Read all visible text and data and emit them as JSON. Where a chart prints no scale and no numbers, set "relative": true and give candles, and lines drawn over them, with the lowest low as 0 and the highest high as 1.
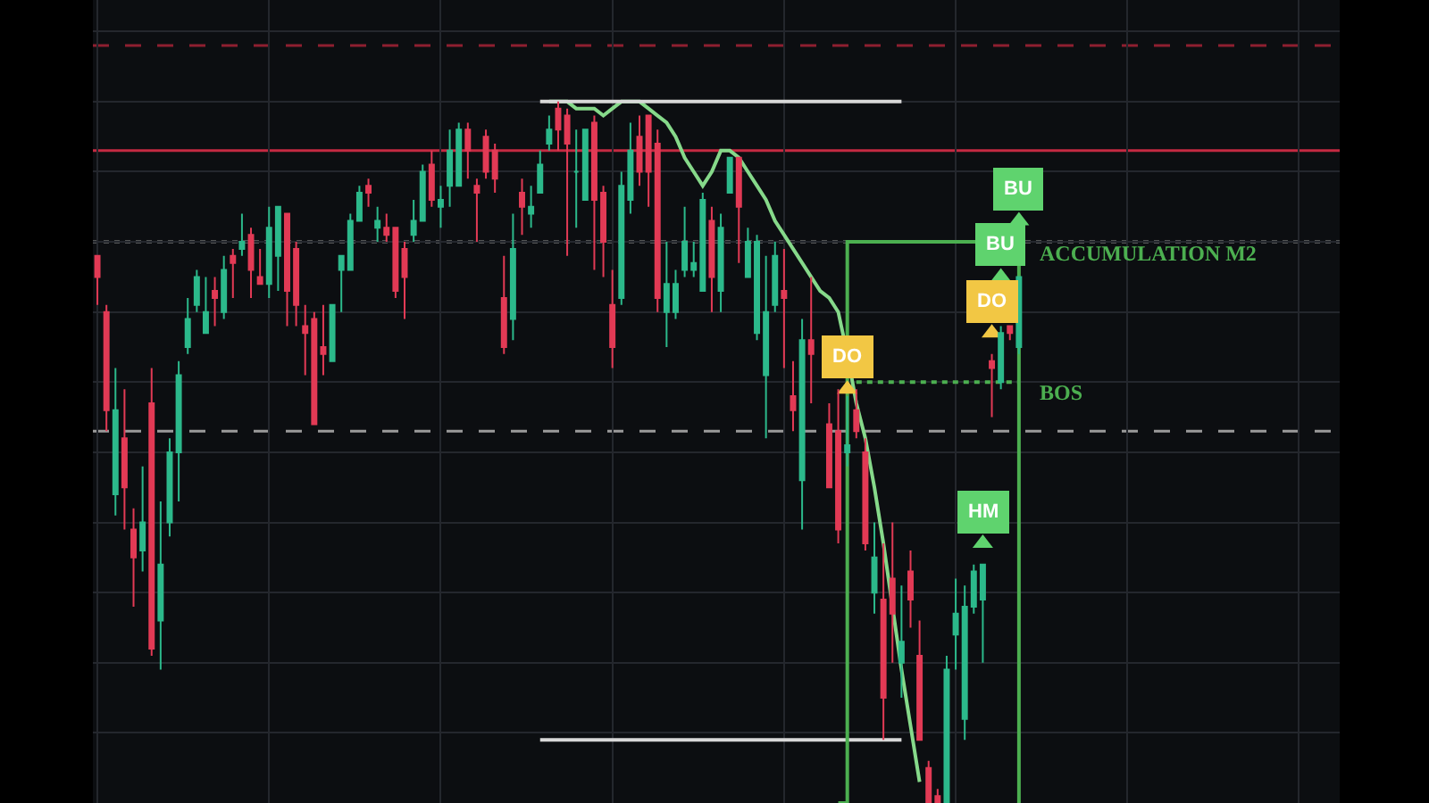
{
  "chart_data": {
    "type": "candlestick",
    "relative": true,
    "grid": true,
    "tick_labels": false,
    "categories": [
      null,
      null,
      null,
      null,
      null,
      null,
      null,
      null,
      null,
      null,
      null,
      null,
      null,
      null,
      null,
      null,
      null,
      null,
      null,
      null,
      null,
      null,
      null,
      null,
      null,
      null,
      null,
      null,
      null,
      null,
      null,
      null,
      null,
      null,
      null,
      null,
      null,
      null,
      null,
      null,
      null,
      null,
      null,
      null,
      null,
      null,
      null,
      null,
      null,
      null,
      null,
      null,
      null,
      null,
      null,
      null,
      null,
      null,
      null,
      null,
      null,
      null,
      null,
      null,
      null,
      null,
      null,
      null,
      null,
      null,
      null,
      null,
      null,
      null,
      null,
      null,
      null,
      null,
      null,
      null,
      null,
      null,
      null,
      null,
      null,
      null,
      null,
      null,
      null,
      null,
      null,
      null,
      null,
      null,
      null,
      null,
      null,
      null,
      null,
      null,
      null,
      null,
      null,
      null,
      null,
      null,
      null,
      null,
      null,
      null,
      null,
      null,
      null,
      null,
      null,
      null,
      null,
      null,
      null,
      null,
      null,
      null,
      null,
      null,
      null,
      null,
      null,
      null,
      null,
      null,
      null,
      null,
      null,
      null,
      null,
      null,
      null,
      null
    ],
    "ohlc": [
      [
        0.78,
        0.78,
        0.71,
        0.75
      ],
      [
        0.7,
        0.71,
        0.53,
        0.56
      ],
      [
        0.44,
        0.62,
        0.41,
        0.56
      ],
      [
        0.52,
        0.59,
        0.39,
        0.45
      ],
      [
        0.39,
        0.42,
        0.28,
        0.35
      ],
      [
        0.36,
        0.48,
        0.33,
        0.4
      ],
      [
        0.57,
        0.62,
        0.21,
        0.22
      ],
      [
        0.26,
        0.43,
        0.19,
        0.34
      ],
      [
        0.4,
        0.52,
        0.38,
        0.5
      ],
      [
        0.5,
        0.63,
        0.43,
        0.61
      ],
      [
        0.65,
        0.72,
        0.64,
        0.69
      ],
      [
        0.71,
        0.76,
        0.7,
        0.75
      ],
      [
        0.67,
        0.75,
        0.67,
        0.7
      ],
      [
        0.73,
        0.75,
        0.68,
        0.72
      ],
      [
        0.7,
        0.78,
        0.69,
        0.76
      ],
      [
        0.78,
        0.79,
        0.72,
        0.77
      ],
      [
        0.79,
        0.84,
        0.78,
        0.8
      ],
      [
        0.81,
        0.82,
        0.72,
        0.76
      ],
      [
        0.75,
        0.79,
        0.74,
        0.74
      ],
      [
        0.74,
        0.85,
        0.72,
        0.82
      ],
      [
        0.78,
        0.85,
        0.73,
        0.85
      ],
      [
        0.84,
        0.84,
        0.68,
        0.73
      ],
      [
        0.79,
        0.8,
        0.68,
        0.71
      ],
      [
        0.68,
        0.71,
        0.61,
        0.67
      ],
      [
        0.69,
        0.7,
        0.54,
        0.54
      ],
      [
        0.65,
        0.71,
        0.61,
        0.64
      ],
      [
        0.63,
        0.71,
        0.63,
        0.71
      ],
      [
        0.76,
        0.78,
        0.7,
        0.78
      ],
      [
        0.76,
        0.84,
        0.76,
        0.83
      ],
      [
        0.83,
        0.88,
        0.83,
        0.87
      ],
      [
        0.88,
        0.89,
        0.85,
        0.87
      ],
      [
        0.82,
        0.85,
        0.8,
        0.83
      ],
      [
        0.82,
        0.84,
        0.8,
        0.81
      ],
      [
        0.82,
        0.82,
        0.72,
        0.73
      ],
      [
        0.79,
        0.8,
        0.69,
        0.75
      ],
      [
        0.81,
        0.86,
        0.8,
        0.83
      ],
      [
        0.83,
        0.91,
        0.83,
        0.9
      ],
      [
        0.91,
        0.93,
        0.85,
        0.86
      ],
      [
        0.85,
        0.88,
        0.82,
        0.86
      ],
      [
        0.88,
        0.96,
        0.85,
        0.93
      ],
      [
        0.88,
        0.97,
        0.88,
        0.96
      ],
      [
        0.96,
        0.97,
        0.89,
        0.93
      ],
      [
        0.88,
        0.89,
        0.8,
        0.87
      ],
      [
        0.95,
        0.96,
        0.89,
        0.9
      ],
      [
        0.93,
        0.94,
        0.87,
        0.89
      ],
      [
        0.72,
        0.78,
        0.64,
        0.65
      ],
      [
        0.69,
        0.84,
        0.66,
        0.79
      ],
      [
        0.87,
        0.89,
        0.81,
        0.85
      ],
      [
        0.84,
        0.88,
        0.82,
        0.85
      ],
      [
        0.87,
        0.93,
        0.87,
        0.91
      ],
      [
        0.94,
        0.98,
        0.93,
        0.96
      ],
      [
        0.99,
        1.0,
        0.93,
        0.96
      ],
      [
        0.98,
        0.99,
        0.78,
        0.94
      ],
      [
        0.9,
        0.96,
        0.82,
        0.9
      ],
      [
        0.86,
        0.96,
        0.86,
        0.96
      ],
      [
        0.97,
        0.98,
        0.76,
        0.86
      ],
      [
        0.87,
        0.88,
        0.75,
        0.8
      ],
      [
        0.71,
        0.76,
        0.62,
        0.65
      ],
      [
        0.72,
        0.9,
        0.71,
        0.88
      ],
      [
        0.86,
        0.97,
        0.84,
        0.93
      ],
      [
        0.95,
        0.98,
        0.88,
        0.9
      ],
      [
        0.98,
        0.98,
        0.85,
        0.9
      ],
      [
        0.94,
        0.96,
        0.7,
        0.72
      ],
      [
        0.7,
        0.8,
        0.65,
        0.74
      ],
      [
        0.7,
        0.76,
        0.69,
        0.74
      ],
      [
        0.76,
        0.85,
        0.75,
        0.8
      ],
      [
        0.76,
        0.8,
        0.75,
        0.77
      ],
      [
        0.73,
        0.87,
        0.73,
        0.86
      ],
      [
        0.83,
        0.85,
        0.7,
        0.75
      ],
      [
        0.73,
        0.84,
        0.7,
        0.82
      ],
      [
        0.87,
        0.92,
        0.87,
        0.92
      ],
      [
        0.92,
        0.92,
        0.77,
        0.85
      ],
      [
        0.75,
        0.82,
        0.75,
        0.8
      ],
      [
        0.67,
        0.81,
        0.66,
        0.8
      ],
      [
        0.61,
        0.78,
        0.52,
        0.7
      ],
      [
        0.71,
        0.8,
        0.7,
        0.78
      ],
      [
        0.73,
        0.79,
        0.62,
        0.72
      ],
      [
        0.58,
        0.63,
        0.53,
        0.56
      ],
      [
        0.46,
        0.69,
        0.39,
        0.66
      ],
      [
        0.66,
        0.75,
        0.57,
        0.64
      ],
      null,
      [
        0.54,
        0.57,
        0.45,
        0.45
      ],
      [
        0.53,
        0.59,
        0.37,
        0.39
      ],
      [
        0.5,
        0.58,
        0.48,
        0.51
      ],
      [
        0.56,
        0.59,
        0.52,
        0.53
      ],
      [
        0.5,
        0.52,
        0.36,
        0.37
      ],
      [
        0.3,
        0.4,
        0.27,
        0.35
      ],
      [
        0.29,
        0.37,
        0.09,
        0.15
      ],
      [
        0.32,
        0.4,
        0.2,
        0.27
      ],
      [
        0.2,
        0.31,
        0.15,
        0.23
      ],
      [
        0.33,
        0.36,
        0.25,
        0.29
      ],
      [
        0.21,
        0.26,
        0.09,
        0.09
      ],
      [
        0.05,
        0.06,
        0,
        0
      ],
      [
        0.01,
        0.02,
        0,
        0
      ],
      [
        0,
        0.21,
        0,
        0.19
      ],
      [
        0.24,
        0.32,
        0.19,
        0.27
      ],
      [
        0.12,
        0.31,
        0.09,
        0.28
      ],
      [
        0.28,
        0.34,
        0.27,
        0.33
      ],
      [
        0.29,
        0.34,
        0.2,
        0.34
      ],
      [
        0.63,
        0.64,
        0.55,
        0.62
      ],
      [
        0.6,
        0.68,
        0.59,
        0.67
      ],
      [
        0.68,
        0.68,
        0.66,
        0.67
      ],
      [
        0.65,
        0.75,
        0.64,
        0.75
      ],
      null,
      null,
      null,
      null,
      null,
      null,
      null,
      null,
      null,
      null,
      null,
      null,
      null,
      null,
      null,
      null,
      null,
      null,
      null,
      null,
      null,
      null,
      null,
      null,
      null,
      null,
      null,
      null,
      null,
      null,
      null,
      null,
      null,
      null,
      null
    ],
    "colors": [
      "#e23a55",
      "#e23a55",
      "#2cb98b",
      "#e23a55",
      "#e23a55",
      "#2cb98b",
      "#e23a55",
      "#2cb98b",
      "#2cb98b",
      "#2cb98b",
      "#2cb98b",
      "#2cb98b",
      "#2cb98b",
      "#e23a55",
      "#2cb98b",
      "#e23a55",
      "#2cb98b",
      "#e23a55",
      "#e23a55",
      "#2cb98b",
      "#2cb98b",
      "#e23a55",
      "#e23a55",
      "#e23a55",
      "#e23a55",
      "#e23a55",
      "#2cb98b",
      "#2cb98b",
      "#2cb98b",
      "#2cb98b",
      "#e23a55",
      "#2cb98b",
      "#e23a55",
      "#e23a55",
      "#e23a55",
      "#2cb98b",
      "#2cb98b",
      "#e23a55",
      "#2cb98b",
      "#2cb98b",
      "#2cb98b",
      "#e23a55",
      "#e23a55",
      "#e23a55",
      "#e23a55",
      "#e23a55",
      "#2cb98b",
      "#e23a55",
      "#2cb98b",
      "#2cb98b",
      "#2cb98b",
      "#e23a55",
      "#e23a55",
      "#2cb98b",
      "#2cb98b",
      "#e23a55",
      "#e23a55",
      "#e23a55",
      "#2cb98b",
      "#2cb98b",
      "#e23a55",
      "#e23a55",
      "#e23a55",
      "#2cb98b",
      "#2cb98b",
      "#2cb98b",
      "#2cb98b",
      "#2cb98b",
      "#e23a55",
      "#2cb98b",
      "#2cb98b",
      "#e23a55",
      "#2cb98b",
      "#2cb98b",
      "#2cb98b",
      "#2cb98b",
      "#e23a55",
      "#e23a55",
      "#2cb98b",
      "#e23a55",
      null,
      "#e23a55",
      "#e23a55",
      "#2cb98b",
      "#e23a55",
      "#e23a55",
      "#2cb98b",
      "#e23a55",
      "#e23a55",
      "#2cb98b",
      "#e23a55",
      "#e23a55",
      "#e23a55",
      "#e23a55",
      "#2cb98b",
      "#2cb98b",
      "#2cb98b",
      "#2cb98b",
      "#2cb98b",
      "#e23a55",
      "#2cb98b",
      "#e23a55",
      "#2cb98b",
      null,
      null,
      null,
      null,
      null,
      null,
      null,
      null,
      null,
      null,
      null,
      null,
      null,
      null,
      null,
      null,
      null,
      null,
      null,
      null,
      null,
      null,
      null,
      null,
      null,
      null,
      null,
      null,
      null,
      null,
      null,
      null,
      null,
      null,
      null
    ],
    "series": [
      {
        "type": "line",
        "color": "#86d98a",
        "values": [
          null,
          null,
          null,
          null,
          null,
          null,
          null,
          null,
          null,
          null,
          null,
          null,
          null,
          null,
          null,
          null,
          null,
          null,
          null,
          null,
          null,
          null,
          null,
          null,
          null,
          null,
          null,
          null,
          null,
          null,
          null,
          null,
          null,
          null,
          null,
          null,
          null,
          null,
          null,
          null,
          null,
          null,
          null,
          null,
          null,
          null,
          null,
          null,
          null,
          null,
          1.0,
          1.0,
          1.0,
          0.99,
          0.99,
          0.99,
          0.98,
          0.99,
          1.0,
          1.0,
          1.0,
          0.99,
          0.98,
          0.97,
          0.95,
          0.92,
          0.9,
          0.88,
          0.9,
          0.93,
          0.93,
          0.92,
          0.9,
          0.88,
          0.86,
          0.83,
          0.81,
          0.79,
          0.77,
          0.75,
          0.73,
          0.72,
          0.7,
          0.64,
          0.57,
          0.52,
          0.45,
          0.37,
          null,
          0.19,
          0.11,
          0.03,
          null,
          null,
          null,
          null,
          null,
          null,
          null,
          null,
          null,
          null,
          null,
          null,
          null,
          null,
          null,
          null,
          null,
          null,
          null,
          null,
          null,
          null,
          null,
          null,
          null,
          null,
          null,
          null,
          null,
          null,
          null,
          null,
          null,
          null,
          null,
          null,
          null,
          null,
          null,
          null,
          null,
          null,
          null,
          null,
          null,
          null
        ]
      },
      {
        "type": "line",
        "color": "#d8d8d8",
        "values": [
          null,
          null,
          null,
          null,
          null,
          null,
          null,
          null,
          null,
          null,
          null,
          null,
          null,
          null,
          null,
          null,
          null,
          null,
          null,
          null,
          null,
          null,
          null,
          null,
          null,
          null,
          null,
          null,
          null,
          null,
          null,
          null,
          null,
          null,
          null,
          null,
          null,
          null,
          null,
          null,
          null,
          null,
          null,
          null,
          null,
          null,
          null,
          null,
          null,
          1.0,
          1.0,
          1.0,
          1.0,
          1.0,
          1.0,
          1.0,
          1.0,
          1.0,
          1.0,
          1.0,
          1.0,
          1.0,
          1.0,
          1.0,
          1.0,
          1.0,
          1.0,
          1.0,
          1.0,
          1.0,
          1.0,
          1.0,
          1.0,
          1.0,
          1.0,
          1.0,
          1.0,
          1.0,
          1.0,
          1.0,
          1.0,
          1.0,
          1.0,
          1.0,
          1.0,
          1.0,
          1.0,
          1.0,
          1.0,
          1.0,
          null,
          null,
          null,
          null,
          null,
          null,
          null,
          null,
          null,
          null,
          null,
          null,
          null,
          null,
          null,
          null,
          null,
          null,
          null,
          null,
          null,
          null,
          null,
          null,
          null,
          null,
          null,
          null,
          null,
          null,
          null,
          null,
          null,
          null,
          null,
          null,
          null,
          null,
          null,
          null,
          null,
          null,
          null,
          null,
          null,
          null,
          null,
          null
        ]
      },
      {
        "type": "line",
        "color": "#d8d8d8",
        "values": [
          null,
          null,
          null,
          null,
          null,
          null,
          null,
          null,
          null,
          null,
          null,
          null,
          null,
          null,
          null,
          null,
          null,
          null,
          null,
          null,
          null,
          null,
          null,
          null,
          null,
          null,
          null,
          null,
          null,
          null,
          null,
          null,
          null,
          null,
          null,
          null,
          null,
          null,
          null,
          null,
          null,
          null,
          null,
          null,
          null,
          null,
          null,
          null,
          null,
          0.09,
          0.09,
          0.09,
          0.09,
          0.09,
          0.09,
          0.09,
          0.09,
          0.09,
          0.09,
          0.09,
          0.09,
          0.09,
          0.09,
          0.09,
          0.09,
          0.09,
          0.09,
          0.09,
          0.09,
          0.09,
          0.09,
          0.09,
          0.09,
          0.09,
          0.09,
          0.09,
          0.09,
          0.09,
          0.09,
          0.09,
          0.09,
          0.09,
          0.09,
          0.09,
          0.09,
          0.09,
          0.09,
          0.09,
          0.09,
          0.09,
          null,
          null,
          null,
          null,
          null,
          null,
          null,
          null,
          null,
          null,
          null,
          null,
          null,
          null,
          null,
          null,
          null,
          null,
          null,
          null,
          null,
          null,
          null,
          null,
          null,
          null,
          null,
          null,
          null,
          null,
          null,
          null,
          null,
          null,
          null,
          null,
          null,
          null,
          null,
          null,
          null,
          null,
          null,
          null,
          null,
          null,
          null,
          null
        ]
      },
      {
        "type": "line",
        "name": "BOS",
        "color": "#4caf50",
        "line_style": "dotted",
        "values": [
          null,
          null,
          null,
          null,
          null,
          null,
          null,
          null,
          null,
          null,
          null,
          null,
          null,
          null,
          null,
          null,
          null,
          null,
          null,
          null,
          null,
          null,
          null,
          null,
          null,
          null,
          null,
          null,
          null,
          null,
          null,
          null,
          null,
          null,
          null,
          null,
          null,
          null,
          null,
          null,
          null,
          null,
          null,
          null,
          null,
          null,
          null,
          null,
          null,
          null,
          null,
          null,
          null,
          null,
          null,
          null,
          null,
          null,
          null,
          null,
          null,
          null,
          null,
          null,
          null,
          null,
          null,
          null,
          null,
          null,
          null,
          null,
          null,
          null,
          null,
          null,
          null,
          null,
          null,
          null,
          null,
          null,
          null,
          null,
          0.6,
          0.6,
          0.6,
          0.6,
          0.6,
          0.6,
          0.6,
          0.6,
          0.6,
          0.6,
          0.6,
          0.6,
          0.6,
          0.6,
          0.6,
          0.6,
          0.6,
          0.6,
          0.6,
          null,
          null,
          null,
          null,
          null,
          null,
          null,
          null,
          null,
          null,
          null,
          null,
          null,
          null,
          null,
          null,
          null,
          null,
          null,
          null,
          null,
          null,
          null,
          null,
          null,
          null,
          null,
          null,
          null,
          null,
          null,
          null,
          null,
          null,
          null
        ]
      },
      {
        "type": "step",
        "name": "ACCUMULATION M2",
        "color": "#4caf50",
        "values": [
          null,
          null,
          null,
          null,
          null,
          null,
          null,
          null,
          null,
          null,
          null,
          null,
          null,
          null,
          null,
          null,
          null,
          null,
          null,
          null,
          null,
          null,
          null,
          null,
          null,
          null,
          null,
          null,
          null,
          null,
          null,
          null,
          null,
          null,
          null,
          null,
          null,
          null,
          null,
          null,
          null,
          null,
          null,
          null,
          null,
          null,
          null,
          null,
          null,
          null,
          null,
          null,
          null,
          null,
          null,
          null,
          null,
          null,
          null,
          null,
          null,
          null,
          null,
          null,
          null,
          null,
          null,
          null,
          null,
          null,
          null,
          null,
          null,
          null,
          null,
          null,
          null,
          null,
          null,
          null,
          null,
          null,
          0,
          0.8,
          0.8,
          0.8,
          0.8,
          0.8,
          0.8,
          0.8,
          0.8,
          0.8,
          0.8,
          0.8,
          0.8,
          0.8,
          0.8,
          0.8,
          0.8,
          0.8,
          0.8,
          0.8,
          0,
          null,
          null,
          null,
          null,
          null,
          null,
          null,
          null,
          null,
          null,
          null,
          null,
          null,
          null,
          null,
          null,
          null,
          null,
          null,
          null,
          null,
          null,
          null,
          null,
          null,
          null,
          null,
          null,
          null,
          null,
          null,
          null,
          null,
          null,
          null
        ]
      },
      {
        "type": "scatter",
        "name": "DO",
        "color": "#f2c744",
        "marker": "triangle",
        "values": [
          null,
          null,
          null,
          null,
          null,
          null,
          null,
          null,
          null,
          null,
          null,
          null,
          null,
          null,
          null,
          null,
          null,
          null,
          null,
          null,
          null,
          null,
          null,
          null,
          null,
          null,
          null,
          null,
          null,
          null,
          null,
          null,
          null,
          null,
          null,
          null,
          null,
          null,
          null,
          null,
          null,
          null,
          null,
          null,
          null,
          null,
          null,
          null,
          null,
          null,
          null,
          null,
          null,
          null,
          null,
          null,
          null,
          null,
          null,
          null,
          null,
          null,
          null,
          null,
          null,
          null,
          null,
          null,
          null,
          null,
          null,
          null,
          null,
          null,
          null,
          null,
          null,
          null,
          null,
          null,
          null,
          null,
          null,
          0.59,
          null,
          null,
          null,
          null,
          null,
          null,
          null,
          null,
          null,
          null,
          null,
          null,
          null,
          null,
          null,
          0.67,
          null,
          null,
          null,
          null,
          null,
          null,
          null,
          null,
          null,
          null,
          null,
          null,
          null,
          null,
          null,
          null,
          null,
          null,
          null,
          null,
          null,
          null,
          null,
          null,
          null,
          null,
          null,
          null,
          null,
          null,
          null,
          null,
          null,
          null,
          null,
          null,
          null,
          null
        ]
      },
      {
        "type": "scatter",
        "name": "BU",
        "color": "#5fd36e",
        "marker": "triangle",
        "values": [
          null,
          null,
          null,
          null,
          null,
          null,
          null,
          null,
          null,
          null,
          null,
          null,
          null,
          null,
          null,
          null,
          null,
          null,
          null,
          null,
          null,
          null,
          null,
          null,
          null,
          null,
          null,
          null,
          null,
          null,
          null,
          null,
          null,
          null,
          null,
          null,
          null,
          null,
          null,
          null,
          null,
          null,
          null,
          null,
          null,
          null,
          null,
          null,
          null,
          null,
          null,
          null,
          null,
          null,
          null,
          null,
          null,
          null,
          null,
          null,
          null,
          null,
          null,
          null,
          null,
          null,
          null,
          null,
          null,
          null,
          null,
          null,
          null,
          null,
          null,
          null,
          null,
          null,
          null,
          null,
          null,
          null,
          null,
          null,
          null,
          null,
          null,
          null,
          null,
          null,
          null,
          null,
          null,
          null,
          null,
          null,
          null,
          null,
          null,
          null,
          0.75,
          null,
          0.83,
          null,
          null,
          null,
          null,
          null,
          null,
          null,
          null,
          null,
          null,
          null,
          null,
          null,
          null,
          null,
          null,
          null,
          null,
          null,
          null,
          null,
          null,
          null,
          null,
          null,
          null,
          null,
          null,
          null,
          null,
          null,
          null,
          null,
          null,
          null
        ]
      },
      {
        "type": "scatter",
        "name": "HM",
        "color": "#5fd36e",
        "marker": "triangle",
        "values": [
          null,
          null,
          null,
          null,
          null,
          null,
          null,
          null,
          null,
          null,
          null,
          null,
          null,
          null,
          null,
          null,
          null,
          null,
          null,
          null,
          null,
          null,
          null,
          null,
          null,
          null,
          null,
          null,
          null,
          null,
          null,
          null,
          null,
          null,
          null,
          null,
          null,
          null,
          null,
          null,
          null,
          null,
          null,
          null,
          null,
          null,
          null,
          null,
          null,
          null,
          null,
          null,
          null,
          null,
          null,
          null,
          null,
          null,
          null,
          null,
          null,
          null,
          null,
          null,
          null,
          null,
          null,
          null,
          null,
          null,
          null,
          null,
          null,
          null,
          null,
          null,
          null,
          null,
          null,
          null,
          null,
          null,
          null,
          null,
          null,
          null,
          null,
          null,
          null,
          null,
          null,
          null,
          null,
          null,
          null,
          null,
          null,
          null,
          0.37,
          null,
          null,
          null,
          null,
          null,
          null,
          null,
          null,
          null,
          null,
          null,
          null,
          null,
          null,
          null,
          null,
          null,
          null,
          null,
          null,
          null,
          null,
          null,
          null,
          null,
          null,
          null,
          null,
          null,
          null,
          null,
          null,
          null,
          null,
          null,
          null,
          null,
          null,
          null
        ]
      }
    ],
    "ref_lines": [
      {
        "axis": "y",
        "value": 1.08,
        "color": "#8e1f30",
        "line_style": "dashed"
      },
      {
        "axis": "y",
        "value": 0.93,
        "color": "#c42a42",
        "line_style": "solid"
      },
      {
        "axis": "y",
        "value": 0.8,
        "color": "#9a9a9a",
        "line_style": "dotted"
      },
      {
        "axis": "y",
        "value": 0.53,
        "color": "#9a9a9a",
        "line_style": "dashed"
      }
    ]
  }
}
